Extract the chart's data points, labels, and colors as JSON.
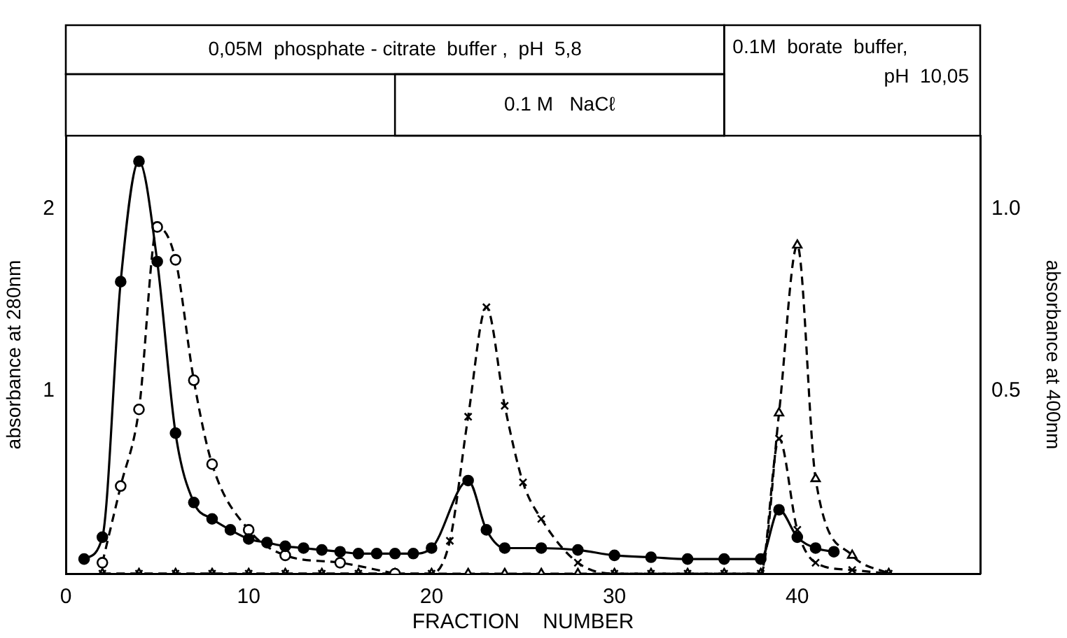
{
  "chart_data": {
    "type": "line",
    "xlabel": "FRACTION    NUMBER",
    "ylabel": "absorbance at 280nm",
    "y2label": "absorbance at 400nm",
    "xlim": [
      0,
      50
    ],
    "xticks": [
      0,
      10,
      20,
      30,
      40
    ],
    "ylim": [
      0,
      2.4
    ],
    "yticks": [
      1,
      2
    ],
    "y2lim": [
      0,
      1.2
    ],
    "y2ticks": [
      0.5,
      {
        "value": 1,
        "label": "1.0"
      }
    ],
    "grid": false,
    "legend": false,
    "annotations": [
      "0,05M  phosphate - citrate  buffer ,  pH  5,8",
      "0.1 M   NaCℓ",
      "0.1M  borate  buffer,\n pH  10,05"
    ],
    "series": [
      {
        "color": "#000000",
        "marker": "circle",
        "line_style": "solid",
        "x": [
          1,
          2,
          3,
          4,
          5,
          6,
          7,
          8,
          9,
          10,
          11,
          12,
          13,
          14,
          15,
          16,
          17,
          18,
          19,
          20,
          22,
          23,
          24,
          26,
          28,
          30,
          32,
          34,
          36,
          38,
          39,
          40,
          41,
          42
        ],
        "values": [
          0.08,
          0.2,
          1.6,
          2.26,
          1.71,
          0.77,
          0.39,
          0.3,
          0.24,
          0.19,
          0.17,
          0.15,
          0.14,
          0.13,
          0.12,
          0.11,
          0.11,
          0.11,
          0.11,
          0.14,
          0.51,
          0.24,
          0.14,
          0.14,
          0.13,
          0.1,
          0.09,
          0.08,
          0.08,
          0.08,
          0.35,
          0.2,
          0.14,
          0.12
        ]
      },
      {
        "color": "#000000",
        "marker": "circle",
        "line_style": "dashed",
        "axis": "y2",
        "x": [
          2,
          3,
          4,
          5,
          6,
          7,
          8,
          10,
          12,
          15,
          18
        ],
        "values": [
          0.03,
          0.24,
          0.45,
          0.95,
          0.86,
          0.53,
          0.3,
          0.12,
          0.05,
          0.03,
          0
        ]
      },
      {
        "color": "#000000",
        "marker": "cross",
        "line_style": "dashed",
        "axis": "y2",
        "x": [
          2,
          4,
          6,
          8,
          10,
          12,
          14,
          16,
          18,
          20,
          21,
          22,
          23,
          24,
          25,
          26,
          28,
          30,
          32,
          34,
          36,
          38,
          39,
          40,
          41,
          43,
          45
        ],
        "values": [
          0,
          0,
          0,
          0,
          0,
          0,
          0,
          0,
          0,
          0,
          0.09,
          0.43,
          0.73,
          0.46,
          0.25,
          0.15,
          0.03,
          0,
          0,
          0,
          0,
          0,
          0.37,
          0.12,
          0.03,
          0.01,
          0
        ]
      },
      {
        "color": "#000000",
        "marker": "triangle",
        "line_style": "dashed",
        "axis": "y2",
        "x": [
          2,
          4,
          6,
          8,
          10,
          12,
          14,
          16,
          18,
          20,
          22,
          24,
          26,
          28,
          30,
          32,
          34,
          36,
          38,
          39,
          40,
          41,
          43,
          45
        ],
        "values": [
          0,
          0,
          0,
          0,
          0,
          0,
          0,
          0,
          0,
          0,
          0,
          0,
          0,
          0,
          0,
          0,
          0,
          0,
          0,
          0.44,
          0.9,
          0.26,
          0.05,
          0
        ]
      }
    ]
  }
}
